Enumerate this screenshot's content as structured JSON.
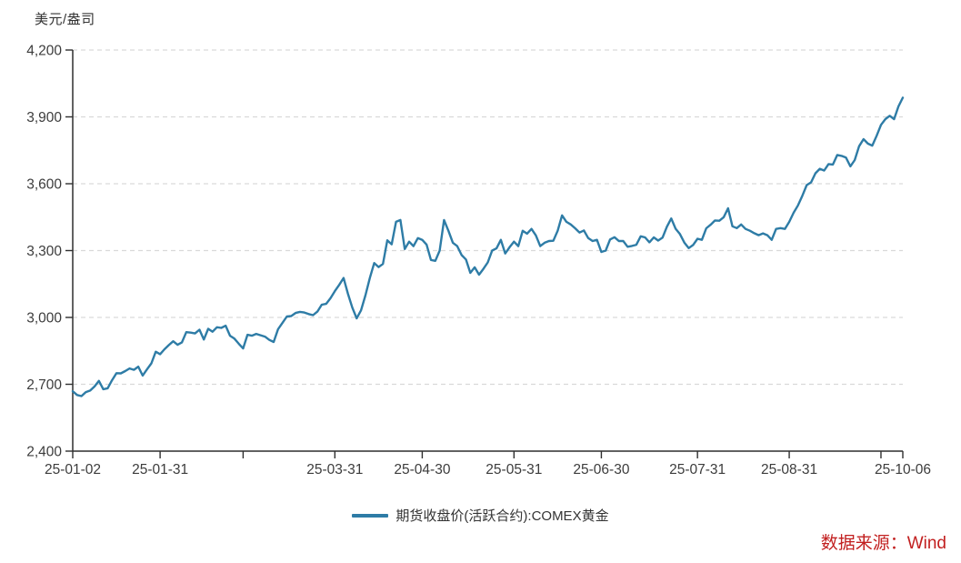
{
  "header": {
    "unit_label": "美元/盎司"
  },
  "legend": {
    "label": "期货收盘价(活跃合约):COMEX黄金",
    "line_color": "#2e7ca6"
  },
  "footer": {
    "source_text": "数据来源：Wind",
    "source_color": "#c22020"
  },
  "colors": {
    "line": "#2e7ca6",
    "grid": "#d9d9d9",
    "axis": "#2f2f2f",
    "tick_text": "#3c3c3c"
  },
  "chart_data": {
    "type": "line",
    "title": "",
    "xlabel": "",
    "ylabel": "美元/盎司",
    "grid": "horizontal-dashed",
    "legend_position": "bottom-center",
    "y_axis": {
      "min": 2400,
      "max": 4200,
      "step": 300,
      "tick_values": [
        2400,
        2700,
        3000,
        3300,
        3600,
        3900,
        4200
      ],
      "tick_labels": [
        "2,400",
        "2,700",
        "3,000",
        "3,300",
        "3,600",
        "3,900",
        "4,200"
      ]
    },
    "x_ticks": [
      {
        "label": "25-01-02",
        "index": 0
      },
      {
        "label": "25-01-31",
        "index": 20
      },
      {
        "label": "",
        "index": 39
      },
      {
        "label": "25-03-31",
        "index": 60
      },
      {
        "label": "25-04-30",
        "index": 80
      },
      {
        "label": "25-05-31",
        "index": 101
      },
      {
        "label": "25-06-30",
        "index": 121
      },
      {
        "label": "25-07-31",
        "index": 143
      },
      {
        "label": "25-08-31",
        "index": 164
      },
      {
        "label": "",
        "index": 185
      },
      {
        "label": "25-10-06",
        "index": 190
      }
    ],
    "series": [
      {
        "name": "期货收盘价(活跃合约):COMEX黄金",
        "dates": [
          "25-01-02",
          "25-01-03",
          "25-01-06",
          "25-01-07",
          "25-01-08",
          "25-01-09",
          "25-01-10",
          "25-01-13",
          "25-01-14",
          "25-01-15",
          "25-01-16",
          "25-01-17",
          "25-01-21",
          "25-01-22",
          "25-01-23",
          "25-01-24",
          "25-01-27",
          "25-01-28",
          "25-01-29",
          "25-01-30",
          "25-01-31",
          "25-02-03",
          "25-02-04",
          "25-02-05",
          "25-02-06",
          "25-02-07",
          "25-02-10",
          "25-02-11",
          "25-02-12",
          "25-02-13",
          "25-02-14",
          "25-02-18",
          "25-02-19",
          "25-02-20",
          "25-02-21",
          "25-02-24",
          "25-02-25",
          "25-02-26",
          "25-02-27",
          "25-02-28",
          "25-03-03",
          "25-03-04",
          "25-03-05",
          "25-03-06",
          "25-03-07",
          "25-03-10",
          "25-03-11",
          "25-03-12",
          "25-03-13",
          "25-03-14",
          "25-03-17",
          "25-03-18",
          "25-03-19",
          "25-03-20",
          "25-03-21",
          "25-03-24",
          "25-03-25",
          "25-03-26",
          "25-03-27",
          "25-03-28",
          "25-03-31",
          "25-04-01",
          "25-04-02",
          "25-04-03",
          "25-04-04",
          "25-04-07",
          "25-04-08",
          "25-04-09",
          "25-04-10",
          "25-04-11",
          "25-04-14",
          "25-04-15",
          "25-04-16",
          "25-04-17",
          "25-04-21",
          "25-04-22",
          "25-04-23",
          "25-04-24",
          "25-04-25",
          "25-04-28",
          "25-04-29",
          "25-04-30",
          "25-05-01",
          "25-05-02",
          "25-05-05",
          "25-05-06",
          "25-05-07",
          "25-05-08",
          "25-05-09",
          "25-05-12",
          "25-05-13",
          "25-05-14",
          "25-05-15",
          "25-05-16",
          "25-05-19",
          "25-05-20",
          "25-05-21",
          "25-05-22",
          "25-05-23",
          "25-05-27",
          "25-05-28",
          "25-05-29",
          "25-05-30",
          "25-06-02",
          "25-06-03",
          "25-06-04",
          "25-06-05",
          "25-06-06",
          "25-06-09",
          "25-06-10",
          "25-06-11",
          "25-06-12",
          "25-06-13",
          "25-06-16",
          "25-06-17",
          "25-06-18",
          "25-06-20",
          "25-06-23",
          "25-06-24",
          "25-06-25",
          "25-06-26",
          "25-06-27",
          "25-06-30",
          "25-07-01",
          "25-07-02",
          "25-07-03",
          "25-07-07",
          "25-07-08",
          "25-07-09",
          "25-07-10",
          "25-07-11",
          "25-07-14",
          "25-07-15",
          "25-07-16",
          "25-07-17",
          "25-07-18",
          "25-07-21",
          "25-07-22",
          "25-07-23",
          "25-07-24",
          "25-07-25",
          "25-07-28",
          "25-07-29",
          "25-07-30",
          "25-07-31",
          "25-08-01",
          "25-08-04",
          "25-08-05",
          "25-08-06",
          "25-08-07",
          "25-08-08",
          "25-08-11",
          "25-08-12",
          "25-08-13",
          "25-08-14",
          "25-08-15",
          "25-08-18",
          "25-08-19",
          "25-08-20",
          "25-08-21",
          "25-08-22",
          "25-08-25",
          "25-08-26",
          "25-08-27",
          "25-08-28",
          "25-08-29",
          "25-09-02",
          "25-09-03",
          "25-09-04",
          "25-09-05",
          "25-09-08",
          "25-09-09",
          "25-09-10",
          "25-09-11",
          "25-09-12",
          "25-09-15",
          "25-09-16",
          "25-09-17",
          "25-09-18",
          "25-09-19",
          "25-09-22",
          "25-09-23",
          "25-09-24",
          "25-09-25",
          "25-09-26",
          "25-09-29",
          "25-09-30",
          "25-10-01",
          "25-10-02",
          "25-10-03",
          "25-10-06"
        ],
        "values": [
          2669,
          2652,
          2647,
          2665,
          2672,
          2690,
          2715,
          2678,
          2682,
          2718,
          2750,
          2749,
          2759,
          2771,
          2765,
          2779,
          2739,
          2767,
          2794,
          2846,
          2835,
          2857,
          2876,
          2893,
          2877,
          2888,
          2934,
          2932,
          2928,
          2945,
          2901,
          2949,
          2936,
          2956,
          2953,
          2963,
          2918,
          2905,
          2882,
          2861,
          2922,
          2918,
          2926,
          2920,
          2914,
          2899,
          2890,
          2947,
          2976,
          3004,
          3006,
          3020,
          3025,
          3022,
          3015,
          3010,
          3026,
          3057,
          3061,
          3086,
          3118,
          3146,
          3177,
          3106,
          3044,
          2996,
          3032,
          3100,
          3177,
          3244,
          3226,
          3240,
          3346,
          3328,
          3429,
          3437,
          3307,
          3340,
          3320,
          3356,
          3348,
          3327,
          3258,
          3254,
          3300,
          3437,
          3388,
          3335,
          3320,
          3280,
          3260,
          3200,
          3225,
          3192,
          3218,
          3247,
          3300,
          3310,
          3348,
          3287,
          3315,
          3340,
          3320,
          3389,
          3376,
          3397,
          3368,
          3320,
          3335,
          3343,
          3344,
          3389,
          3458,
          3429,
          3417,
          3400,
          3381,
          3390,
          3356,
          3343,
          3348,
          3294,
          3300,
          3350,
          3360,
          3343,
          3343,
          3317,
          3321,
          3326,
          3364,
          3359,
          3337,
          3359,
          3345,
          3358,
          3407,
          3444,
          3398,
          3374,
          3336,
          3311,
          3325,
          3353,
          3348,
          3400,
          3416,
          3435,
          3434,
          3450,
          3490,
          3409,
          3401,
          3417,
          3397,
          3389,
          3378,
          3369,
          3377,
          3369,
          3348,
          3397,
          3401,
          3397,
          3429,
          3470,
          3503,
          3546,
          3594,
          3606,
          3647,
          3667,
          3659,
          3688,
          3686,
          3729,
          3725,
          3717,
          3678,
          3706,
          3768,
          3800,
          3780,
          3771,
          3815,
          3864,
          3890,
          3905,
          3890,
          3947,
          3986
        ]
      }
    ]
  }
}
